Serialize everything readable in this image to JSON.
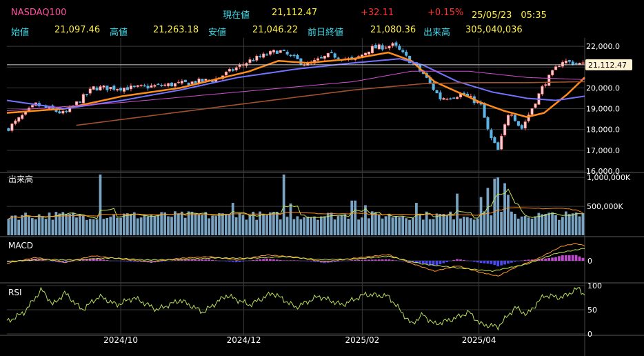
{
  "header": {
    "symbol": "NASDAQ100",
    "current_label": "現在値",
    "current_value": "21,112.47",
    "change": "+32.11",
    "change_pct": "+0.15%",
    "datetime": "25/05/23　05:35",
    "open_label": "始値",
    "open_value": "21,097.46",
    "high_label": "高値",
    "high_value": "21,263.18",
    "low_label": "安値",
    "low_value": "21,046.22",
    "prev_close_label": "前日終値",
    "prev_close_value": "21,080.36",
    "volume_label": "出来高",
    "volume_value": "305,040,036"
  },
  "colors": {
    "up": "#ff6b6b",
    "down": "#5ab4e6",
    "ma_short": "#ff8c1a",
    "ma_mid": "#7373ff",
    "ma_long": "#d04fd0",
    "ma_longest": "#a0522d",
    "volume": "#7aa4c4",
    "macd": "#ff9933",
    "signal": "#c8e050",
    "rsi": "#b8e05a",
    "grid": "#3a3a3a"
  },
  "chart_data": [
    {
      "type": "candlestick",
      "title": "NASDAQ100",
      "last_price_label": "21,112.47",
      "last_price": 21112.47,
      "ylim": [
        16000,
        22400
      ],
      "y_ticks": [
        "22,000.0",
        "21,000.0",
        "20,000.0",
        "19,000.0",
        "18,000.0",
        "17,000.0",
        "16,000.0"
      ],
      "y_tick_values": [
        22000,
        21000,
        20000,
        19000,
        18000,
        17000,
        16000
      ],
      "x_ticks": [
        "2024/10",
        "2024/12",
        "2025/02",
        "2025/04"
      ],
      "keypoints": [
        {
          "t": 0,
          "v": 18000
        },
        {
          "t": 0.05,
          "v": 19200
        },
        {
          "t": 0.1,
          "v": 18750
        },
        {
          "t": 0.15,
          "v": 20000
        },
        {
          "t": 0.22,
          "v": 20000
        },
        {
          "t": 0.3,
          "v": 20200
        },
        {
          "t": 0.36,
          "v": 20400
        },
        {
          "t": 0.42,
          "v": 21300
        },
        {
          "t": 0.47,
          "v": 21800
        },
        {
          "t": 0.52,
          "v": 21100
        },
        {
          "t": 0.56,
          "v": 21600
        },
        {
          "t": 0.6,
          "v": 21300
        },
        {
          "t": 0.63,
          "v": 21900
        },
        {
          "t": 0.67,
          "v": 22050
        },
        {
          "t": 0.72,
          "v": 20700
        },
        {
          "t": 0.75,
          "v": 19500
        },
        {
          "t": 0.79,
          "v": 19700
        },
        {
          "t": 0.82,
          "v": 19200
        },
        {
          "t": 0.835,
          "v": 17700
        },
        {
          "t": 0.85,
          "v": 17000
        },
        {
          "t": 0.87,
          "v": 19000
        },
        {
          "t": 0.89,
          "v": 18000
        },
        {
          "t": 0.93,
          "v": 20200
        },
        {
          "t": 0.96,
          "v": 21300
        },
        {
          "t": 1,
          "v": 21112
        }
      ],
      "moving_averages": [
        {
          "key": "ma_short",
          "keypoints": [
            {
              "t": 0,
              "v": 18800
            },
            {
              "t": 0.1,
              "v": 19000
            },
            {
              "t": 0.2,
              "v": 19600
            },
            {
              "t": 0.3,
              "v": 20000
            },
            {
              "t": 0.36,
              "v": 20400
            },
            {
              "t": 0.42,
              "v": 20800
            },
            {
              "t": 0.47,
              "v": 21300
            },
            {
              "t": 0.52,
              "v": 21200
            },
            {
              "t": 0.56,
              "v": 21300
            },
            {
              "t": 0.6,
              "v": 21400
            },
            {
              "t": 0.66,
              "v": 21700
            },
            {
              "t": 0.7,
              "v": 21300
            },
            {
              "t": 0.74,
              "v": 20300
            },
            {
              "t": 0.78,
              "v": 19800
            },
            {
              "t": 0.82,
              "v": 19300
            },
            {
              "t": 0.86,
              "v": 18900
            },
            {
              "t": 0.9,
              "v": 18600
            },
            {
              "t": 0.93,
              "v": 18800
            },
            {
              "t": 0.97,
              "v": 19700
            },
            {
              "t": 1,
              "v": 20500
            }
          ]
        },
        {
          "key": "ma_mid",
          "keypoints": [
            {
              "t": 0,
              "v": 19400
            },
            {
              "t": 0.1,
              "v": 19000
            },
            {
              "t": 0.2,
              "v": 19400
            },
            {
              "t": 0.3,
              "v": 19900
            },
            {
              "t": 0.4,
              "v": 20500
            },
            {
              "t": 0.5,
              "v": 20900
            },
            {
              "t": 0.6,
              "v": 21200
            },
            {
              "t": 0.68,
              "v": 21400
            },
            {
              "t": 0.72,
              "v": 21100
            },
            {
              "t": 0.78,
              "v": 20300
            },
            {
              "t": 0.84,
              "v": 19800
            },
            {
              "t": 0.9,
              "v": 19500
            },
            {
              "t": 0.95,
              "v": 19400
            },
            {
              "t": 1,
              "v": 19600
            }
          ]
        },
        {
          "key": "ma_long",
          "keypoints": [
            {
              "t": 0,
              "v": 18900
            },
            {
              "t": 0.2,
              "v": 19300
            },
            {
              "t": 0.4,
              "v": 19800
            },
            {
              "t": 0.6,
              "v": 20300
            },
            {
              "t": 0.7,
              "v": 20800
            },
            {
              "t": 0.8,
              "v": 20800
            },
            {
              "t": 0.9,
              "v": 20500
            },
            {
              "t": 1,
              "v": 20400
            }
          ]
        },
        {
          "key": "ma_longest",
          "keypoints": [
            {
              "t": 0.12,
              "v": 18200
            },
            {
              "t": 0.4,
              "v": 19200
            },
            {
              "t": 0.6,
              "v": 19900
            },
            {
              "t": 0.72,
              "v": 20200
            },
            {
              "t": 0.8,
              "v": 20250
            },
            {
              "t": 0.9,
              "v": 20250
            },
            {
              "t": 1,
              "v": 20300
            }
          ]
        }
      ]
    },
    {
      "type": "bar",
      "title": "出来高",
      "y_ticks": [
        "1,000,000K",
        "500,000K"
      ],
      "y_tick_values": [
        1000000,
        500000
      ],
      "ylim": [
        0,
        1050000
      ],
      "unit": "K",
      "base": 340000,
      "spikes": [
        {
          "t": 0.16,
          "v": 1050000
        },
        {
          "t": 0.48,
          "v": 1050000
        },
        {
          "t": 0.49,
          "v": 550000
        },
        {
          "t": 0.39,
          "v": 560000
        },
        {
          "t": 0.6,
          "v": 600000
        },
        {
          "t": 0.62,
          "v": 520000
        },
        {
          "t": 0.71,
          "v": 560000
        },
        {
          "t": 0.78,
          "v": 720000
        },
        {
          "t": 0.82,
          "v": 660000
        },
        {
          "t": 0.835,
          "v": 820000
        },
        {
          "t": 0.845,
          "v": 980000
        },
        {
          "t": 0.85,
          "v": 1000000
        },
        {
          "t": 0.86,
          "v": 900000
        },
        {
          "t": 0.87,
          "v": 700000
        }
      ]
    },
    {
      "type": "line",
      "title": "MACD",
      "y_ticks": [
        "0"
      ],
      "y_tick_values": [
        0
      ],
      "ylim": [
        -500,
        500
      ],
      "macd_keypoints": [
        {
          "t": 0,
          "v": -60
        },
        {
          "t": 0.05,
          "v": 80
        },
        {
          "t": 0.1,
          "v": -40
        },
        {
          "t": 0.15,
          "v": 120
        },
        {
          "t": 0.2,
          "v": 40
        },
        {
          "t": 0.25,
          "v": -30
        },
        {
          "t": 0.3,
          "v": 60
        },
        {
          "t": 0.35,
          "v": 100
        },
        {
          "t": 0.4,
          "v": 20
        },
        {
          "t": 0.45,
          "v": 140
        },
        {
          "t": 0.5,
          "v": 90
        },
        {
          "t": 0.55,
          "v": -30
        },
        {
          "t": 0.6,
          "v": 60
        },
        {
          "t": 0.66,
          "v": 150
        },
        {
          "t": 0.7,
          "v": -60
        },
        {
          "t": 0.74,
          "v": -250
        },
        {
          "t": 0.78,
          "v": -120
        },
        {
          "t": 0.82,
          "v": -280
        },
        {
          "t": 0.85,
          "v": -370
        },
        {
          "t": 0.88,
          "v": -160
        },
        {
          "t": 0.92,
          "v": 60
        },
        {
          "t": 0.96,
          "v": 350
        },
        {
          "t": 0.985,
          "v": 420
        },
        {
          "t": 1,
          "v": 360
        }
      ],
      "signal_keypoints": [
        {
          "t": 0,
          "v": -20
        },
        {
          "t": 0.06,
          "v": 30
        },
        {
          "t": 0.12,
          "v": 20
        },
        {
          "t": 0.18,
          "v": 70
        },
        {
          "t": 0.24,
          "v": 20
        },
        {
          "t": 0.3,
          "v": 30
        },
        {
          "t": 0.36,
          "v": 70
        },
        {
          "t": 0.42,
          "v": 60
        },
        {
          "t": 0.48,
          "v": 100
        },
        {
          "t": 0.54,
          "v": 30
        },
        {
          "t": 0.6,
          "v": 40
        },
        {
          "t": 0.66,
          "v": 110
        },
        {
          "t": 0.72,
          "v": -80
        },
        {
          "t": 0.78,
          "v": -170
        },
        {
          "t": 0.84,
          "v": -250
        },
        {
          "t": 0.9,
          "v": -80
        },
        {
          "t": 0.95,
          "v": 180
        },
        {
          "t": 1,
          "v": 300
        }
      ]
    },
    {
      "type": "line",
      "title": "RSI",
      "y_ticks": [
        "100",
        "50",
        "0"
      ],
      "y_tick_values": [
        100,
        50,
        0
      ],
      "ylim": [
        0,
        100
      ],
      "keypoints": [
        {
          "t": 0,
          "v": 25
        },
        {
          "t": 0.03,
          "v": 45
        },
        {
          "t": 0.06,
          "v": 92
        },
        {
          "t": 0.08,
          "v": 60
        },
        {
          "t": 0.1,
          "v": 85
        },
        {
          "t": 0.13,
          "v": 50
        },
        {
          "t": 0.16,
          "v": 78
        },
        {
          "t": 0.19,
          "v": 60
        },
        {
          "t": 0.22,
          "v": 75
        },
        {
          "t": 0.26,
          "v": 50
        },
        {
          "t": 0.3,
          "v": 70
        },
        {
          "t": 0.34,
          "v": 45
        },
        {
          "t": 0.38,
          "v": 80
        },
        {
          "t": 0.42,
          "v": 60
        },
        {
          "t": 0.46,
          "v": 85
        },
        {
          "t": 0.5,
          "v": 55
        },
        {
          "t": 0.54,
          "v": 78
        },
        {
          "t": 0.58,
          "v": 60
        },
        {
          "t": 0.62,
          "v": 82
        },
        {
          "t": 0.66,
          "v": 78
        },
        {
          "t": 0.68,
          "v": 50
        },
        {
          "t": 0.7,
          "v": 20
        },
        {
          "t": 0.72,
          "v": 40
        },
        {
          "t": 0.74,
          "v": 20
        },
        {
          "t": 0.77,
          "v": 30
        },
        {
          "t": 0.8,
          "v": 45
        },
        {
          "t": 0.82,
          "v": 20
        },
        {
          "t": 0.85,
          "v": 15
        },
        {
          "t": 0.88,
          "v": 55
        },
        {
          "t": 0.9,
          "v": 40
        },
        {
          "t": 0.93,
          "v": 80
        },
        {
          "t": 0.96,
          "v": 75
        },
        {
          "t": 0.99,
          "v": 95
        },
        {
          "t": 1,
          "v": 80
        }
      ]
    }
  ]
}
